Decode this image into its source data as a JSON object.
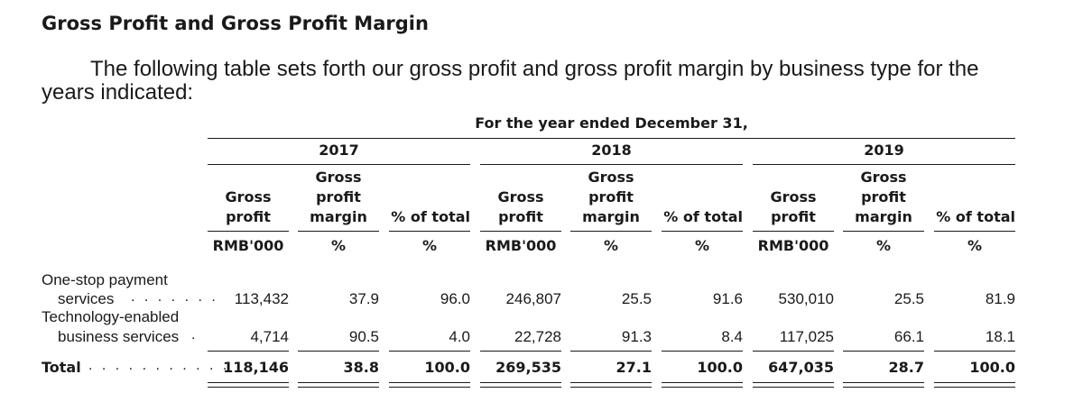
{
  "heading": "Gross Profit and Gross Profit Margin",
  "intro": "The following table sets forth our gross profit and gross profit margin by business type for the years indicated:",
  "table": {
    "period_header": "For the year ended December 31,",
    "years": [
      "2017",
      "2018",
      "2019"
    ],
    "columns": [
      {
        "line1": "",
        "line2": "Gross",
        "line3": "profit",
        "unit": "RMB'000"
      },
      {
        "line1": "Gross",
        "line2": "profit",
        "line3": "margin",
        "unit": "%"
      },
      {
        "line1": "",
        "line2": "",
        "line3": "% of total",
        "unit": "%"
      }
    ],
    "rows": [
      {
        "label1": "One-stop payment",
        "label2": "services",
        "values": [
          "113,432",
          "37.9",
          "96.0",
          "246,807",
          "25.5",
          "91.6",
          "530,010",
          "25.5",
          "81.9"
        ]
      },
      {
        "label1": "Technology-enabled",
        "label2": "business services",
        "values": [
          "4,714",
          "90.5",
          "4.0",
          "22,728",
          "91.3",
          "8.4",
          "117,025",
          "66.1",
          "18.1"
        ]
      }
    ],
    "total": {
      "label": "Total",
      "values": [
        "118,146",
        "38.8",
        "100.0",
        "269,535",
        "27.1",
        "100.0",
        "647,035",
        "28.7",
        "100.0"
      ]
    }
  }
}
